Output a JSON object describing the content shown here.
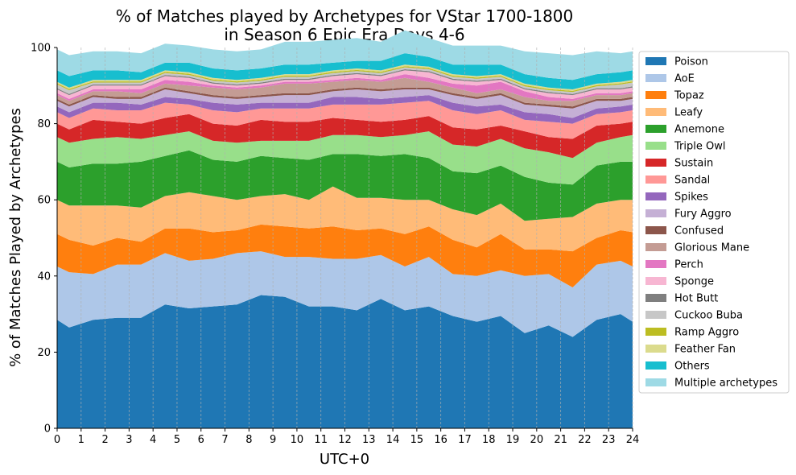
{
  "chart_data": {
    "type": "area",
    "title_line1": "% of Matches played by Archetypes for VStar 1700-1800",
    "title_line2": "in Season 6 Epic Era Days 4-6",
    "xlabel": "UTC+0",
    "ylabel": "% of Matches Played by Archetypes",
    "xlim": [
      0,
      24
    ],
    "ylim": [
      0,
      100
    ],
    "xticks": [
      0,
      1,
      2,
      3,
      4,
      5,
      6,
      7,
      8,
      9,
      10,
      11,
      12,
      13,
      14,
      15,
      16,
      17,
      18,
      19,
      20,
      21,
      22,
      23,
      24
    ],
    "yticks": [
      0,
      20,
      40,
      60,
      80,
      100
    ],
    "grid": "vertical dashed",
    "legend_position": "right outside",
    "x": [
      0,
      0.5,
      1.5,
      2.5,
      3.5,
      4.5,
      5.5,
      6.5,
      7.5,
      8.5,
      9.5,
      10.5,
      11.5,
      12.5,
      13.5,
      14.5,
      15.5,
      16.5,
      17.5,
      18.5,
      19.5,
      20.5,
      21.5,
      22.5,
      23.5,
      24
    ],
    "series": [
      {
        "name": "Poison",
        "color": "#1f77b4",
        "values": [
          28.5,
          26.5,
          28.5,
          29,
          29,
          32.5,
          31.5,
          32,
          32.5,
          35,
          34.5,
          32,
          32,
          31,
          34,
          31,
          32,
          29.5,
          28,
          29.5,
          25,
          27,
          24,
          28.5,
          30,
          28
        ]
      },
      {
        "name": "AoE",
        "color": "#aec7e8",
        "values": [
          14,
          14.5,
          12,
          14,
          14,
          13.5,
          12.5,
          12.5,
          13.5,
          11.5,
          10.5,
          13,
          12.5,
          13.5,
          11.5,
          11.5,
          13,
          11,
          12,
          12,
          15,
          13.5,
          13,
          14.5,
          14,
          14.5
        ]
      },
      {
        "name": "Topaz",
        "color": "#ff7f0e",
        "values": [
          8.5,
          8.5,
          7.5,
          7,
          6,
          6.5,
          8.5,
          7,
          6,
          7,
          8,
          7.5,
          8.5,
          7.5,
          7,
          8.5,
          8,
          9,
          7.5,
          9.5,
          7,
          6.5,
          9.5,
          7,
          8,
          9
        ]
      },
      {
        "name": "Leafy",
        "color": "#ffbb78",
        "values": [
          9,
          9,
          10.5,
          8.5,
          9,
          8.5,
          9.5,
          9.5,
          8,
          7.5,
          8.5,
          7.5,
          10.5,
          8.5,
          8,
          9,
          7,
          8,
          8.5,
          8,
          7.5,
          8,
          9,
          9,
          8,
          8.5
        ]
      },
      {
        "name": "Anemone",
        "color": "#2ca02c",
        "values": [
          10,
          10,
          11,
          11,
          12,
          10.5,
          11,
          9.5,
          10,
          10.5,
          9.5,
          10.5,
          8.5,
          11.5,
          11,
          12,
          11,
          10,
          11,
          10,
          11.5,
          9.5,
          8.5,
          10,
          10,
          10
        ]
      },
      {
        "name": "Triple Owl",
        "color": "#98df8a",
        "values": [
          6.5,
          6.5,
          6.5,
          7,
          6,
          5.5,
          5,
          5,
          5,
          4,
          4.5,
          5,
          5,
          5,
          5,
          5,
          7,
          7,
          7,
          7,
          7.5,
          8,
          7,
          6,
          6.5,
          7
        ]
      },
      {
        "name": "Sustain",
        "color": "#d62728",
        "values": [
          3.5,
          3.5,
          5,
          4,
          4,
          4.5,
          4.5,
          4.5,
          4.5,
          5.5,
          5,
          5,
          4.5,
          4,
          4,
          4,
          4,
          4.5,
          4.5,
          3.5,
          4.5,
          4,
          5,
          4.5,
          3.5,
          3.5
        ]
      },
      {
        "name": "Sandal",
        "color": "#ff9896",
        "values": [
          3,
          3,
          3,
          3,
          3.5,
          4,
          2.5,
          3.5,
          3.5,
          3,
          3.5,
          3.5,
          3.5,
          4,
          4.5,
          4.5,
          4,
          4.5,
          4,
          4,
          3,
          4,
          4,
          3,
          3,
          3
        ]
      },
      {
        "name": "Spikes",
        "color": "#9467bd",
        "values": [
          1.5,
          1.5,
          1.5,
          2,
          1.5,
          1.5,
          1.5,
          2,
          2,
          1.5,
          1.5,
          1.5,
          2,
          2,
          1.5,
          1.5,
          1.5,
          2,
          2,
          1.5,
          2,
          2,
          1.5,
          1.5,
          1.5,
          1.5
        ]
      },
      {
        "name": "Fury Aggro",
        "color": "#c5b0d5",
        "values": [
          1.5,
          1.5,
          1.5,
          1,
          1.5,
          2,
          1.5,
          1.5,
          1.5,
          1.5,
          2,
          2,
          1.5,
          2,
          2,
          2,
          1.5,
          2,
          2,
          2.5,
          2,
          2,
          2.5,
          2,
          1.5,
          1.5
        ]
      },
      {
        "name": "Confused",
        "color": "#8c564b",
        "values": [
          0.5,
          0.5,
          0.5,
          0.5,
          0.5,
          0.5,
          0.5,
          0.5,
          0.5,
          0.5,
          0.5,
          0.5,
          0.5,
          0.5,
          0.5,
          0.5,
          0.5,
          0.5,
          0.5,
          0.5,
          0.5,
          0.5,
          0.5,
          0.5,
          0.5,
          0.5
        ]
      },
      {
        "name": "Glorious Mane",
        "color": "#c49c94",
        "values": [
          1,
          1,
          1,
          1.5,
          1,
          1,
          1.5,
          2,
          2,
          2,
          2.5,
          2.5,
          2,
          2,
          2,
          2.5,
          1.5,
          1.5,
          1,
          1,
          1.5,
          1,
          1.5,
          1,
          1,
          1
        ]
      },
      {
        "name": "Perch",
        "color": "#e377c2",
        "values": [
          0.5,
          0.5,
          0.5,
          0.5,
          1,
          1,
          1,
          0.5,
          0.5,
          0.5,
          0.5,
          0.5,
          0.5,
          0.5,
          0.5,
          1,
          1,
          1,
          2,
          2,
          1.5,
          1,
          0.5,
          0.5,
          0.5,
          0.5
        ]
      },
      {
        "name": "Sponge",
        "color": "#f7b6d2",
        "values": [
          1,
          1,
          1,
          1,
          1,
          1,
          1,
          0.5,
          0.5,
          0.5,
          0.5,
          0.5,
          1,
          1,
          1,
          1,
          1.5,
          1,
          1,
          0.5,
          0.5,
          1,
          1,
          1,
          1,
          1
        ]
      },
      {
        "name": "Hot Butt",
        "color": "#7f7f7f",
        "values": [
          0.3,
          0.3,
          0.3,
          0.3,
          0.3,
          0.3,
          0.3,
          0.3,
          0.3,
          0.3,
          0.3,
          0.3,
          0.3,
          0.3,
          0.3,
          0.3,
          0.3,
          0.3,
          0.3,
          0.3,
          0.3,
          0.3,
          0.3,
          0.3,
          0.3,
          0.3
        ]
      },
      {
        "name": "Cuckoo Buba",
        "color": "#c7c7c7",
        "values": [
          1,
          1,
          0.5,
          0.5,
          0.5,
          0.5,
          0.5,
          0.5,
          0.5,
          0.5,
          0.5,
          0.5,
          0.5,
          0.5,
          0.5,
          0.5,
          0.5,
          0.5,
          0.5,
          0.5,
          0.5,
          0.5,
          0.5,
          0.5,
          1,
          1
        ]
      },
      {
        "name": "Ramp Aggro",
        "color": "#bcbd22",
        "values": [
          0.3,
          0.3,
          0.3,
          0.3,
          0.3,
          0.3,
          0.3,
          0.3,
          0.3,
          0.3,
          0.3,
          0.3,
          0.3,
          0.3,
          0.3,
          0.3,
          0.3,
          0.3,
          0.3,
          0.3,
          0.3,
          0.3,
          0.3,
          0.3,
          0.3,
          0.3
        ]
      },
      {
        "name": "Feather Fan",
        "color": "#dbdb8d",
        "values": [
          0.4,
          0.4,
          0.4,
          0.4,
          0.4,
          0.4,
          0.4,
          0.4,
          0.4,
          0.4,
          0.4,
          0.4,
          0.4,
          0.4,
          0.4,
          0.4,
          0.4,
          0.4,
          0.4,
          0.4,
          0.4,
          0.4,
          0.4,
          0.4,
          0.4,
          0.4
        ]
      },
      {
        "name": "Others",
        "color": "#17becf",
        "values": [
          3,
          3,
          2.5,
          2.5,
          2,
          2,
          2.5,
          2.5,
          2.5,
          2.5,
          2.5,
          2.5,
          2,
          2,
          2.5,
          3,
          2.5,
          2.5,
          3,
          2.5,
          2.5,
          2.5,
          2.5,
          2.5,
          2.5,
          2.5
        ]
      },
      {
        "name": "Multiple archetypes",
        "color": "#9edae5",
        "values": [
          5.5,
          5.5,
          5,
          5,
          5,
          5,
          4.5,
          5,
          5,
          5,
          6,
          6,
          6,
          6,
          5,
          6,
          5,
          5,
          5,
          5,
          6,
          6.5,
          6.5,
          6,
          5,
          5
        ]
      }
    ]
  }
}
